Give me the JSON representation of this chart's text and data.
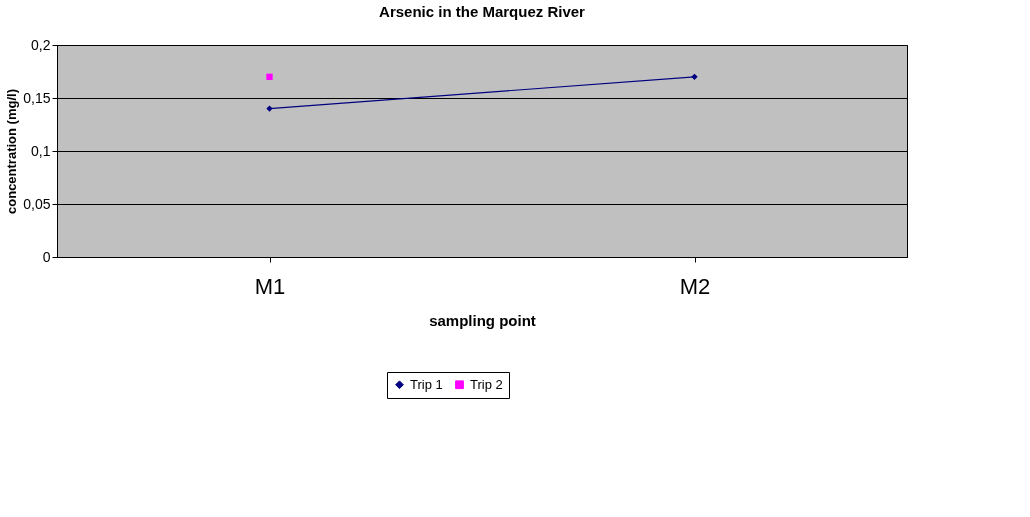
{
  "chart_data": {
    "type": "line",
    "title": "Arsenic in the Marquez River",
    "xlabel": "sampling point",
    "ylabel": "concentration (mg/l)",
    "categories": [
      "M1",
      "M2"
    ],
    "series": [
      {
        "name": "Trip 1",
        "color": "#000080",
        "marker": "diamond",
        "values": [
          0.14,
          0.17
        ]
      },
      {
        "name": "Trip 2",
        "color": "#ff00ff",
        "marker": "square",
        "values": [
          0.17,
          null
        ]
      }
    ],
    "ylim": [
      0,
      0.2
    ],
    "yticks": [
      {
        "value": 0,
        "label": "0"
      },
      {
        "value": 0.05,
        "label": "0,05"
      },
      {
        "value": 0.1,
        "label": "0,1"
      },
      {
        "value": 0.15,
        "label": "0,15"
      },
      {
        "value": 0.2,
        "label": "0,2"
      }
    ],
    "grid": "y",
    "legend": "bottom",
    "marker": "diamond",
    "line_style": "solid"
  }
}
